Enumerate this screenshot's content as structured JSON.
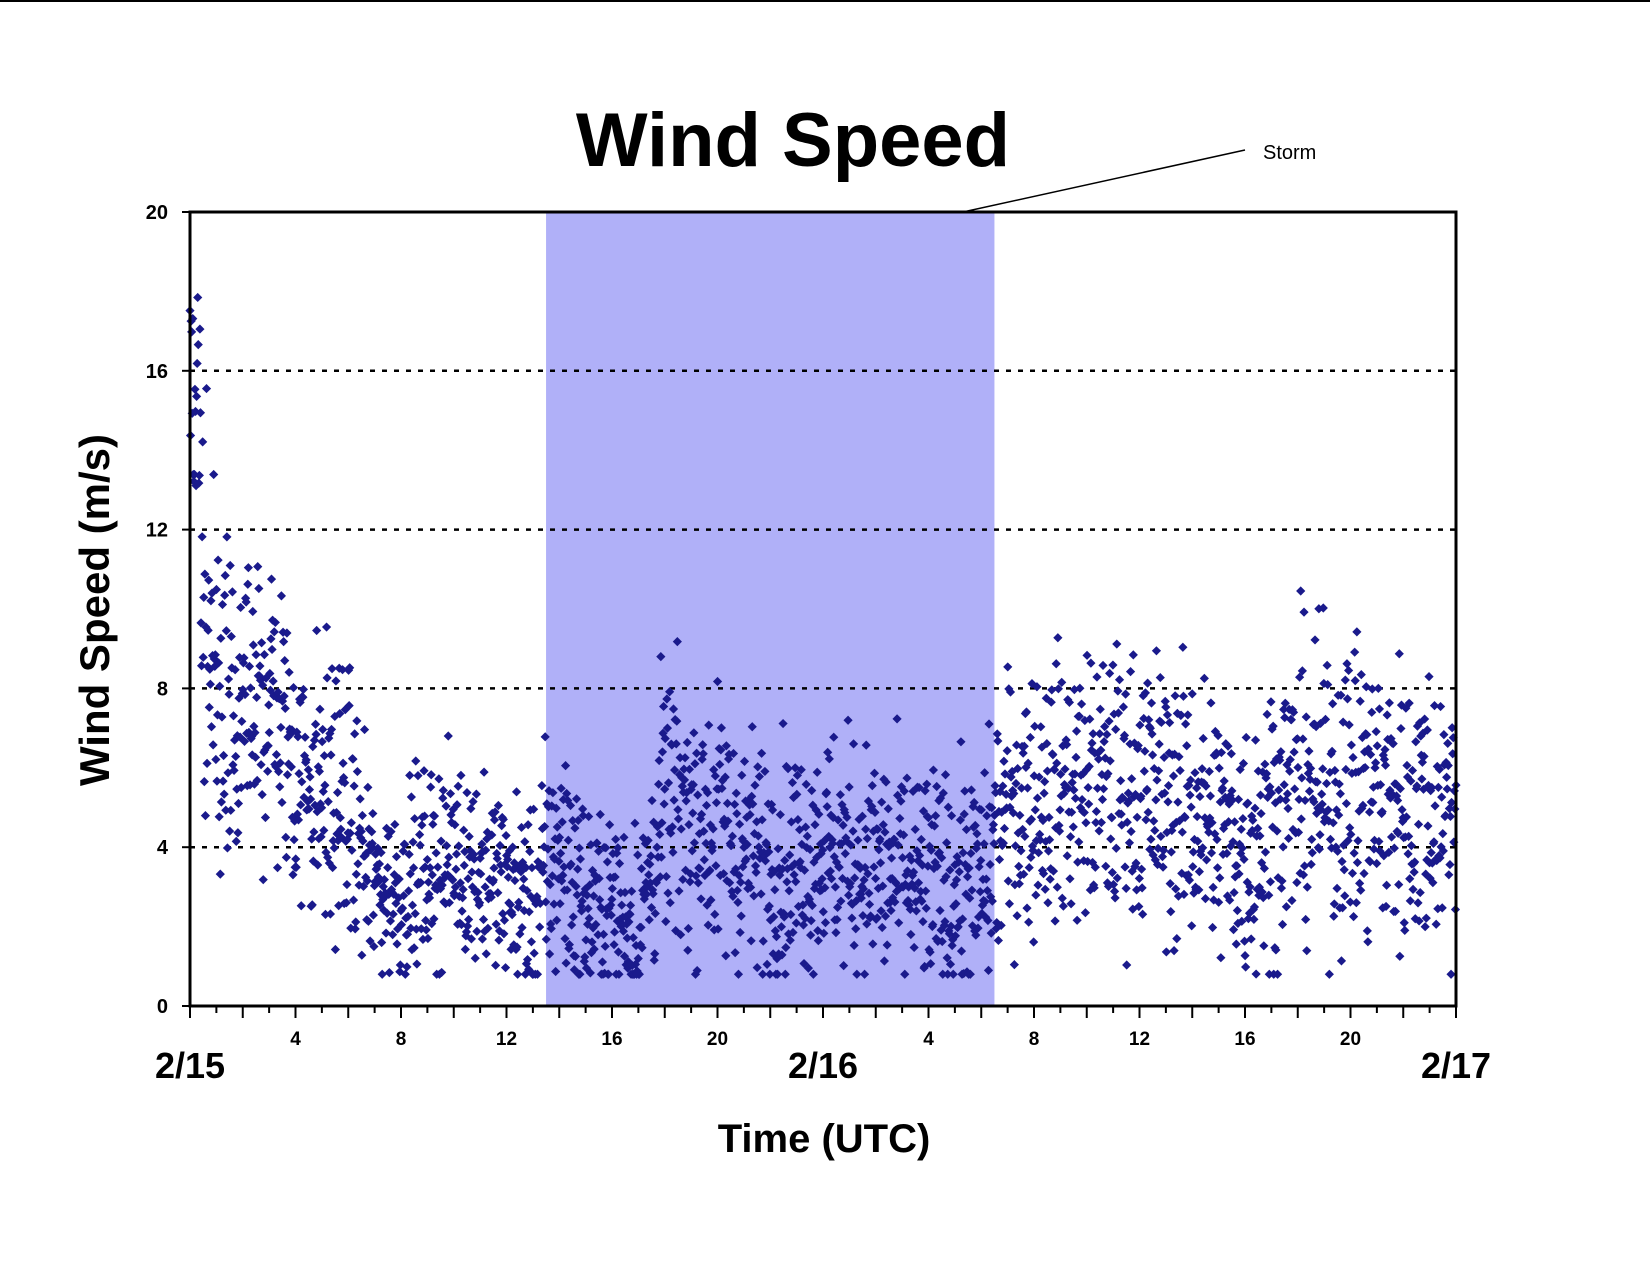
{
  "chart_data": {
    "type": "scatter",
    "title": "Wind Speed",
    "xlabel": "Time (UTC)",
    "ylabel": "Wind Speed (m/s)",
    "xlim_hours": [
      0,
      48
    ],
    "ylim": [
      0,
      20
    ],
    "yticks": [
      0,
      4,
      8,
      12,
      16,
      20
    ],
    "xticks": [
      {
        "hour": 4,
        "label": "4"
      },
      {
        "hour": 8,
        "label": "8"
      },
      {
        "hour": 12,
        "label": "12"
      },
      {
        "hour": 16,
        "label": "16"
      },
      {
        "hour": 20,
        "label": "20"
      },
      {
        "hour": 28,
        "label": "4"
      },
      {
        "hour": 32,
        "label": "8"
      },
      {
        "hour": 36,
        "label": "12"
      },
      {
        "hour": 40,
        "label": "16"
      },
      {
        "hour": 44,
        "label": "20"
      }
    ],
    "date_labels": [
      {
        "hour": 0,
        "label": "2/15"
      },
      {
        "hour": 24,
        "label": "2/16"
      },
      {
        "hour": 48,
        "label": "2/17"
      }
    ],
    "grid": "horizontal dotted at 4, 8, 12, 16",
    "marker": "diamond",
    "marker_color": "#1a1a8c",
    "shaded_region": {
      "start_hour": 13.5,
      "end_hour": 30.5,
      "color": "#b0b0f8",
      "label": "Storm"
    },
    "series_profile": {
      "hours": [
        0,
        0.5,
        1,
        2,
        3,
        4,
        5,
        6,
        7,
        8,
        10,
        12,
        13,
        14,
        15,
        16,
        17,
        18,
        20,
        22,
        24,
        26,
        28,
        30,
        31,
        33,
        36,
        38,
        40,
        42,
        44,
        46,
        48
      ],
      "mean_speed": [
        15,
        10,
        7.5,
        7.5,
        8,
        6,
        5.5,
        5,
        3,
        3,
        3.8,
        3,
        2.5,
        4,
        2.5,
        2.5,
        2,
        5,
        4.5,
        3.5,
        4,
        3.5,
        3,
        3,
        5,
        5.5,
        5.5,
        5,
        4,
        5.5,
        5.5,
        5,
        5
      ],
      "spread": [
        2.5,
        2.5,
        2.5,
        2.5,
        2.5,
        2,
        2,
        1.8,
        1.2,
        1.3,
        1.3,
        1.2,
        1.5,
        1.8,
        1.3,
        1.3,
        1.3,
        1.8,
        1.8,
        1.6,
        1.6,
        1.6,
        1.6,
        1.6,
        1.8,
        1.8,
        1.9,
        1.9,
        1.9,
        2,
        2.1,
        2,
        2
      ]
    }
  }
}
